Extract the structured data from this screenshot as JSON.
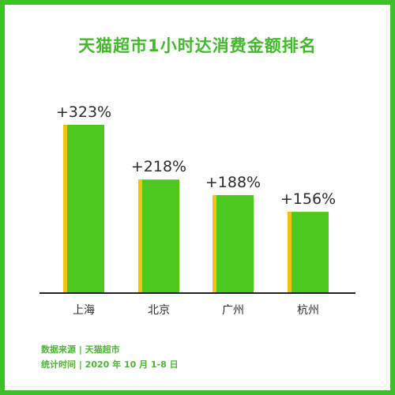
{
  "colors": {
    "frame": "#3fc02a",
    "bar": "#4cc81e",
    "bar_edge": "#f2c20f",
    "axis": "#222222",
    "text": "#2b2b2b",
    "accent_text": "#4cb535"
  },
  "chart_data": {
    "type": "bar",
    "title": "天猫超市1小时达消费金额排名",
    "categories": [
      "上海",
      "北京",
      "广州",
      "杭州"
    ],
    "values": [
      323,
      218,
      188,
      156
    ],
    "labels": [
      "+323%",
      "+218%",
      "+188%",
      "+156%"
    ],
    "unit": "%",
    "grid": false,
    "legend": "none"
  },
  "footer": {
    "source": "数据来源 | 天猫超市",
    "period": "统计时间 | 2020 年 10 月 1-8 日"
  }
}
